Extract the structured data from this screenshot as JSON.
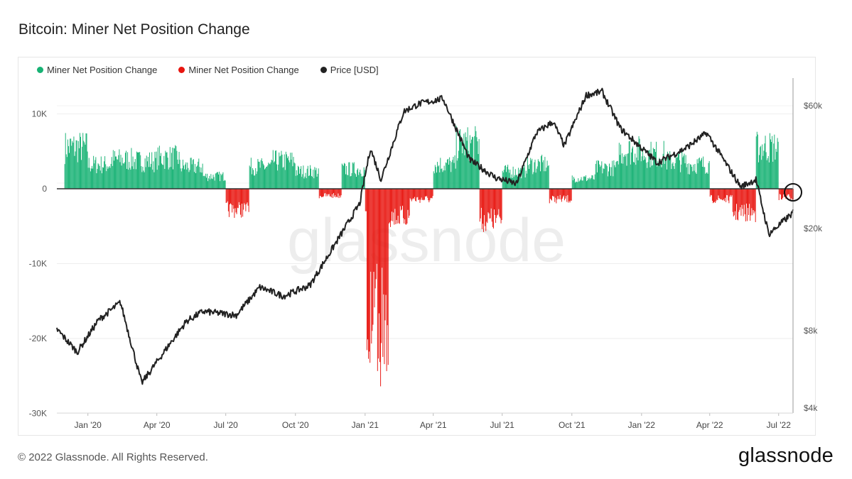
{
  "title": "Bitcoin: Miner Net Position Change",
  "footer": {
    "copyright": "© 2022 Glassnode. All Rights Reserved.",
    "logo": "glassnode"
  },
  "watermark": "glassnode",
  "colors": {
    "positive": "#17b274",
    "negative": "#e8150f",
    "price": "#222222",
    "zero_line": "#333333",
    "grid": "#eeeeee"
  },
  "chart_data": {
    "type": "bar",
    "title": "Bitcoin: Miner Net Position Change",
    "legend": [
      {
        "label": "Miner Net Position Change",
        "color": "#17b274"
      },
      {
        "label": "Miner Net Position Change",
        "color": "#e8150f"
      },
      {
        "label": "Price [USD]",
        "color": "#222222"
      }
    ],
    "legend_position": "top-left",
    "x_ticks": [
      "Jan '20",
      "Apr '20",
      "Jul '20",
      "Oct '20",
      "Jan '21",
      "Apr '21",
      "Jul '21",
      "Oct '21",
      "Jan '22",
      "Apr '22",
      "Jul '22"
    ],
    "x_range": [
      "2019-11-21",
      "2022-07-20"
    ],
    "y_left": {
      "ticks": [
        "10K",
        "0",
        "-10K",
        "-20K",
        "-30K"
      ],
      "tick_values": [
        10000,
        0,
        -10000,
        -20000,
        -30000
      ],
      "range": [
        -30000,
        12000
      ]
    },
    "y_right": {
      "scale": "log",
      "ticks": [
        "$60k",
        "$20k",
        "$8k",
        "$4k"
      ],
      "tick_values": [
        60000,
        20000,
        8000,
        4000
      ],
      "range": [
        4000,
        75000
      ]
    },
    "series": [
      {
        "name": "Miner Net Position Change",
        "unit": "BTC",
        "monthly_approx": [
          [
            "2019-12",
            6000
          ],
          [
            "2020-01",
            3500
          ],
          [
            "2020-02",
            4200
          ],
          [
            "2020-03",
            4000
          ],
          [
            "2020-04",
            4500
          ],
          [
            "2020-05",
            3200
          ],
          [
            "2020-06",
            1800
          ],
          [
            "2020-07",
            -3000
          ],
          [
            "2020-08",
            3200
          ],
          [
            "2020-09",
            4000
          ],
          [
            "2020-10",
            2500
          ],
          [
            "2020-11",
            -1000
          ],
          [
            "2020-12",
            2800
          ],
          [
            "2021-01",
            -20000
          ],
          [
            "2021-02",
            -4000
          ],
          [
            "2021-03",
            -1500
          ],
          [
            "2021-04",
            3500
          ],
          [
            "2021-05",
            6500
          ],
          [
            "2021-06",
            -4500
          ],
          [
            "2021-07",
            2500
          ],
          [
            "2021-08",
            3500
          ],
          [
            "2021-09",
            -1500
          ],
          [
            "2021-10",
            1500
          ],
          [
            "2021-11",
            3000
          ],
          [
            "2021-12",
            5500
          ],
          [
            "2022-01",
            5000
          ],
          [
            "2022-02",
            4000
          ],
          [
            "2022-03",
            3500
          ],
          [
            "2022-04",
            -1500
          ],
          [
            "2022-05",
            -3500
          ],
          [
            "2022-06",
            6000
          ],
          [
            "2022-07",
            -1200
          ]
        ]
      },
      {
        "name": "Price [USD]",
        "points": [
          [
            "2019-11-21",
            8100
          ],
          [
            "2019-12-18",
            6600
          ],
          [
            "2020-01-15",
            8800
          ],
          [
            "2020-02-13",
            10300
          ],
          [
            "2020-03-12",
            5000
          ],
          [
            "2020-04-15",
            6900
          ],
          [
            "2020-05-10",
            8700
          ],
          [
            "2020-06-01",
            9500
          ],
          [
            "2020-07-15",
            9200
          ],
          [
            "2020-08-15",
            11800
          ],
          [
            "2020-09-15",
            10900
          ],
          [
            "2020-10-20",
            12000
          ],
          [
            "2020-11-15",
            16000
          ],
          [
            "2020-12-25",
            25000
          ],
          [
            "2021-01-08",
            41000
          ],
          [
            "2021-01-22",
            31000
          ],
          [
            "2021-02-21",
            57000
          ],
          [
            "2021-03-13",
            61000
          ],
          [
            "2021-04-14",
            64000
          ],
          [
            "2021-05-19",
            37000
          ],
          [
            "2021-06-22",
            31500
          ],
          [
            "2021-07-20",
            29800
          ],
          [
            "2021-08-15",
            47000
          ],
          [
            "2021-09-06",
            52000
          ],
          [
            "2021-09-21",
            42000
          ],
          [
            "2021-10-20",
            66000
          ],
          [
            "2021-11-10",
            68000
          ],
          [
            "2021-12-04",
            49000
          ],
          [
            "2022-01-22",
            36000
          ],
          [
            "2022-02-28",
            41000
          ],
          [
            "2022-03-28",
            47000
          ],
          [
            "2022-05-12",
            29000
          ],
          [
            "2022-06-01",
            31000
          ],
          [
            "2022-06-18",
            19000
          ],
          [
            "2022-07-20",
            23000
          ]
        ]
      }
    ],
    "annotation": "circle marking latest value near zero (Jul '22)"
  }
}
